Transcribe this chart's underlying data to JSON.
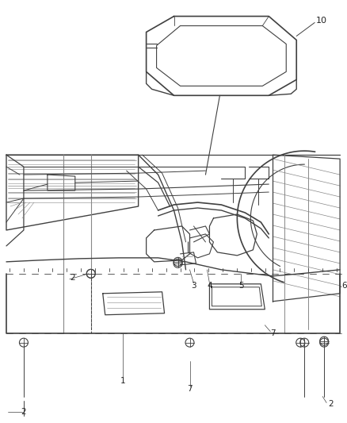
{
  "background_color": "#ffffff",
  "line_color": "#404040",
  "light_line": "#888888",
  "figsize": [
    4.38,
    5.33
  ],
  "dpi": 100,
  "label_fontsize": 7.5,
  "label_color": "#222222"
}
